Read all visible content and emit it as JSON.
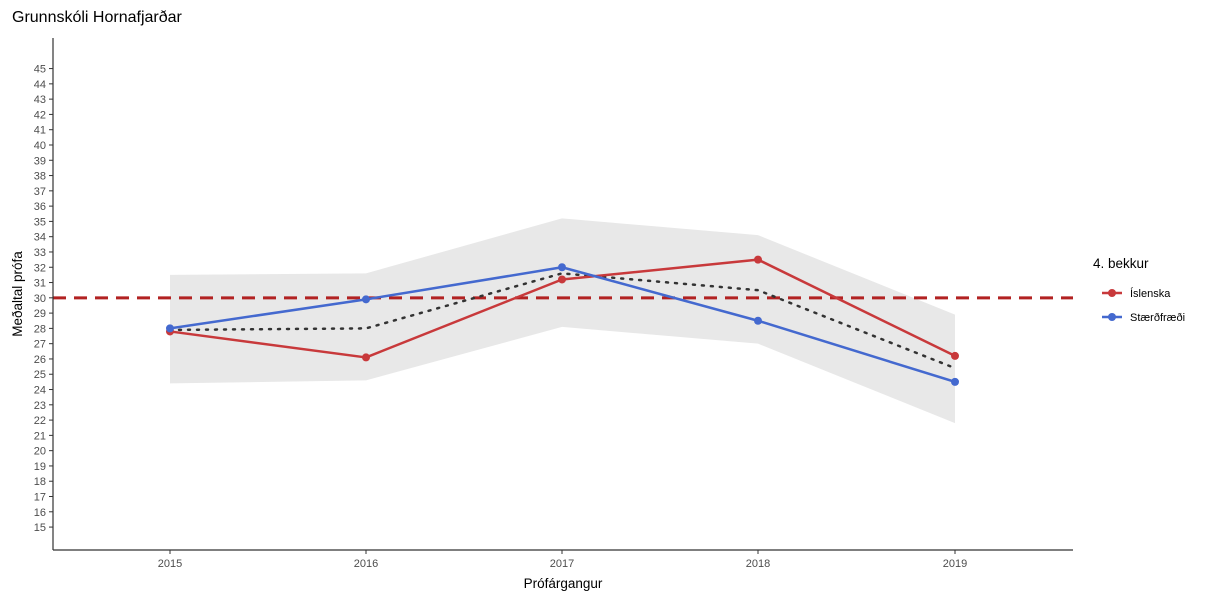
{
  "chart_data": {
    "type": "line",
    "title": "Grunnskóli Hornafjarðar",
    "xlabel": "Prófárgangur",
    "ylabel": "Meðaltal prófa",
    "categories": [
      "2015",
      "2016",
      "2017",
      "2018",
      "2019"
    ],
    "y_ticks": [
      15,
      16,
      17,
      18,
      19,
      20,
      21,
      22,
      23,
      24,
      25,
      26,
      27,
      28,
      29,
      30,
      31,
      32,
      33,
      34,
      35,
      36,
      37,
      38,
      39,
      40,
      41,
      42,
      43,
      44,
      45
    ],
    "ylim": [
      13.5,
      47
    ],
    "grid": false,
    "legend": {
      "title": "4. bekkur",
      "placement": "right"
    },
    "series": [
      {
        "name": "Íslenska",
        "color": "#c8393b",
        "values": [
          27.8,
          26.1,
          31.2,
          32.5,
          26.2
        ]
      },
      {
        "name": "Stærðfræði",
        "color": "#4469cf",
        "values": [
          28.0,
          29.9,
          32.0,
          28.5,
          24.5
        ]
      }
    ],
    "average_line": {
      "values": [
        27.9,
        28.0,
        31.6,
        30.5,
        25.4
      ],
      "color": "#333333",
      "style": "dotted"
    },
    "ribbon": {
      "upper": [
        31.5,
        31.6,
        35.2,
        34.1,
        28.9
      ],
      "lower": [
        24.4,
        24.6,
        28.1,
        27.0,
        21.8
      ],
      "color": "#e8e8e8"
    },
    "reference_line": {
      "value": 30,
      "color": "#b22222",
      "style": "dashed"
    }
  }
}
